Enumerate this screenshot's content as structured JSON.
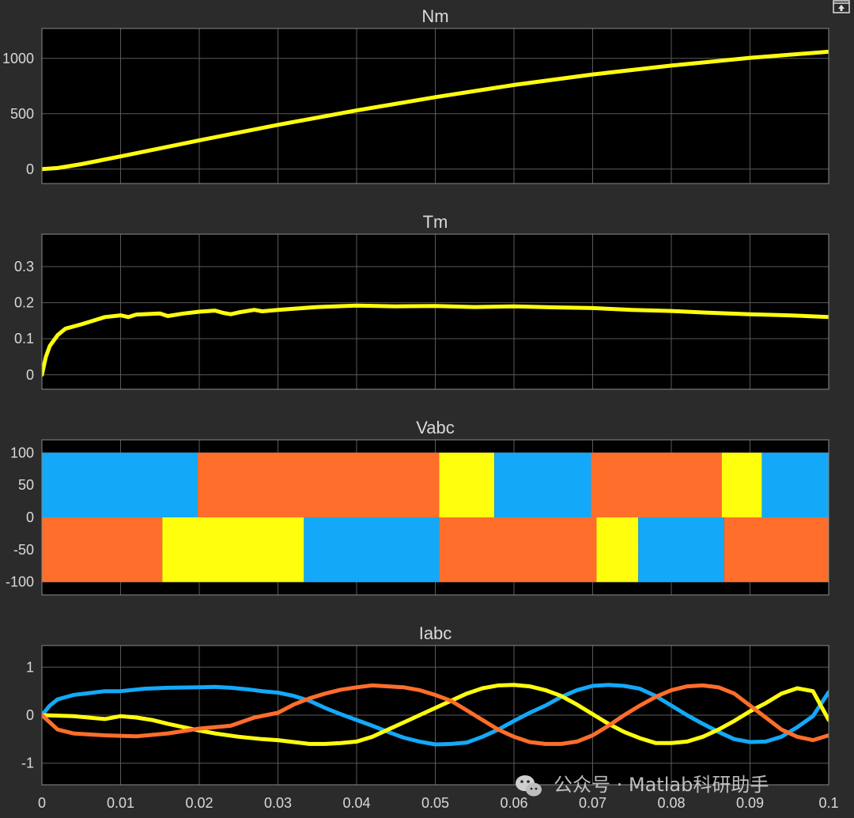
{
  "window": {
    "restore_icon": "restore-axes-icon"
  },
  "watermark": {
    "text": "公众号 · Matlab科研助手",
    "icon": "wechat-icon"
  },
  "colors": {
    "background": "#2b2b2b",
    "axes_bg": "#000000",
    "grid": "#5a5a5a",
    "text": "#d9d9d9",
    "yellow": "#ffff0d",
    "blue": "#13a9f8",
    "orange": "#ff6e2b"
  },
  "chart_data": [
    {
      "type": "line",
      "title": "Nm",
      "xlim": [
        0,
        0.1
      ],
      "ylim": [
        -130,
        1270
      ],
      "yticks": [
        0,
        500,
        1000
      ],
      "xticks": [
        0,
        0.01,
        0.02,
        0.03,
        0.04,
        0.05,
        0.06,
        0.07,
        0.08,
        0.09,
        0.1
      ],
      "show_xtick_labels": false,
      "grid": true,
      "series": [
        {
          "color": "#ffff0d",
          "x": [
            0,
            0.002,
            0.005,
            0.01,
            0.02,
            0.03,
            0.04,
            0.05,
            0.06,
            0.07,
            0.08,
            0.09,
            0.1
          ],
          "y": [
            0,
            10,
            45,
            115,
            260,
            400,
            530,
            650,
            760,
            855,
            935,
            1005,
            1060
          ]
        }
      ]
    },
    {
      "type": "line",
      "title": "Tm",
      "xlim": [
        0,
        0.1
      ],
      "ylim": [
        -0.04,
        0.39
      ],
      "yticks": [
        0,
        0.1,
        0.2,
        0.3
      ],
      "xticks": [
        0,
        0.01,
        0.02,
        0.03,
        0.04,
        0.05,
        0.06,
        0.07,
        0.08,
        0.09,
        0.1
      ],
      "show_xtick_labels": false,
      "grid": true,
      "series": [
        {
          "color": "#ffff0d",
          "x": [
            0,
            0.0005,
            0.001,
            0.002,
            0.003,
            0.005,
            0.008,
            0.01,
            0.011,
            0.012,
            0.015,
            0.016,
            0.018,
            0.02,
            0.022,
            0.023,
            0.024,
            0.025,
            0.027,
            0.028,
            0.03,
            0.035,
            0.04,
            0.045,
            0.05,
            0.055,
            0.06,
            0.065,
            0.07,
            0.075,
            0.08,
            0.085,
            0.09,
            0.095,
            0.1
          ],
          "y": [
            0,
            0.05,
            0.08,
            0.11,
            0.128,
            0.14,
            0.16,
            0.165,
            0.16,
            0.167,
            0.17,
            0.163,
            0.17,
            0.175,
            0.178,
            0.172,
            0.168,
            0.173,
            0.18,
            0.176,
            0.18,
            0.188,
            0.192,
            0.19,
            0.191,
            0.188,
            0.19,
            0.187,
            0.185,
            0.18,
            0.177,
            0.172,
            0.168,
            0.165,
            0.16
          ]
        }
      ]
    },
    {
      "type": "area",
      "title": "Vabc",
      "xlim": [
        0,
        0.1
      ],
      "ylim": [
        -120,
        120
      ],
      "yticks": [
        -100,
        -50,
        0,
        50,
        100
      ],
      "xticks": [
        0,
        0.01,
        0.02,
        0.03,
        0.04,
        0.05,
        0.06,
        0.07,
        0.08,
        0.09,
        0.1
      ],
      "show_xtick_labels": false,
      "grid": true,
      "segments": [
        {
          "color": "#13a9f8",
          "x0": 0,
          "x1": 0.0198,
          "y0": 0,
          "y1": 100
        },
        {
          "color": "#ff6e2b",
          "x0": 0.0198,
          "x1": 0.0505,
          "y0": 0,
          "y1": 100
        },
        {
          "color": "#ffff0d",
          "x0": 0.0505,
          "x1": 0.0575,
          "y0": 0,
          "y1": 100
        },
        {
          "color": "#13a9f8",
          "x0": 0.0575,
          "x1": 0.0698,
          "y0": 0,
          "y1": 100
        },
        {
          "color": "#ff6e2b",
          "x0": 0.0698,
          "x1": 0.0864,
          "y0": 0,
          "y1": 100
        },
        {
          "color": "#ffff0d",
          "x0": 0.0864,
          "x1": 0.0915,
          "y0": 0,
          "y1": 100
        },
        {
          "color": "#13a9f8",
          "x0": 0.0915,
          "x1": 0.1,
          "y0": 0,
          "y1": 100
        },
        {
          "color": "#ff6e2b",
          "x0": 0,
          "x1": 0.0153,
          "y0": -100,
          "y1": 0
        },
        {
          "color": "#ffff0d",
          "x0": 0.0153,
          "x1": 0.0333,
          "y0": -100,
          "y1": 0
        },
        {
          "color": "#13a9f8",
          "x0": 0.0333,
          "x1": 0.0505,
          "y0": -100,
          "y1": 0
        },
        {
          "color": "#ff6e2b",
          "x0": 0.0505,
          "x1": 0.0705,
          "y0": -100,
          "y1": 0
        },
        {
          "color": "#ffff0d",
          "x0": 0.0705,
          "x1": 0.0758,
          "y0": -100,
          "y1": 0
        },
        {
          "color": "#13a9f8",
          "x0": 0.0758,
          "x1": 0.0867,
          "y0": -100,
          "y1": 0
        },
        {
          "color": "#ff6e2b",
          "x0": 0.0867,
          "x1": 0.1,
          "y0": -100,
          "y1": 0
        }
      ]
    },
    {
      "type": "line",
      "title": "Iabc",
      "xlim": [
        0,
        0.1
      ],
      "ylim": [
        -1.45,
        1.45
      ],
      "yticks": [
        -1,
        0,
        1
      ],
      "xticks": [
        0,
        0.01,
        0.02,
        0.03,
        0.04,
        0.05,
        0.06,
        0.07,
        0.08,
        0.09,
        0.1
      ],
      "xtick_labels": [
        "0",
        "0.01",
        "0.02",
        "0.03",
        "0.04",
        "0.05",
        "0.06",
        "0.07",
        "0.08",
        "0.09",
        "0.1"
      ],
      "show_xtick_labels": true,
      "grid": true,
      "series": [
        {
          "color": "#13a9f8",
          "x": [
            0,
            0.001,
            0.002,
            0.004,
            0.006,
            0.008,
            0.01,
            0.013,
            0.016,
            0.02,
            0.022,
            0.024,
            0.026,
            0.028,
            0.03,
            0.032,
            0.034,
            0.036,
            0.038,
            0.04,
            0.042,
            0.044,
            0.046,
            0.048,
            0.05,
            0.052,
            0.054,
            0.056,
            0.058,
            0.06,
            0.062,
            0.064,
            0.066,
            0.068,
            0.07,
            0.072,
            0.074,
            0.076,
            0.078,
            0.08,
            0.082,
            0.084,
            0.086,
            0.088,
            0.09,
            0.092,
            0.094,
            0.096,
            0.098,
            0.1
          ],
          "y": [
            0,
            0.2,
            0.33,
            0.42,
            0.46,
            0.5,
            0.5,
            0.55,
            0.57,
            0.58,
            0.59,
            0.57,
            0.54,
            0.5,
            0.47,
            0.4,
            0.3,
            0.15,
            0.02,
            -0.1,
            -0.22,
            -0.35,
            -0.47,
            -0.55,
            -0.61,
            -0.6,
            -0.57,
            -0.45,
            -0.3,
            -0.12,
            0.05,
            0.2,
            0.38,
            0.52,
            0.61,
            0.63,
            0.61,
            0.55,
            0.4,
            0.2,
            0.0,
            -0.18,
            -0.35,
            -0.5,
            -0.56,
            -0.55,
            -0.45,
            -0.25,
            -0.02,
            0.48
          ]
        },
        {
          "color": "#ffff0d",
          "x": [
            0,
            0.004,
            0.008,
            0.01,
            0.012,
            0.014,
            0.016,
            0.018,
            0.02,
            0.022,
            0.025,
            0.028,
            0.03,
            0.032,
            0.034,
            0.036,
            0.038,
            0.04,
            0.042,
            0.044,
            0.046,
            0.048,
            0.05,
            0.052,
            0.054,
            0.056,
            0.058,
            0.06,
            0.062,
            0.064,
            0.066,
            0.068,
            0.07,
            0.072,
            0.074,
            0.076,
            0.078,
            0.08,
            0.082,
            0.084,
            0.086,
            0.088,
            0.09,
            0.092,
            0.094,
            0.096,
            0.098,
            0.1
          ],
          "y": [
            0,
            -0.02,
            -0.08,
            -0.02,
            -0.05,
            -0.1,
            -0.18,
            -0.25,
            -0.32,
            -0.38,
            -0.45,
            -0.5,
            -0.52,
            -0.56,
            -0.6,
            -0.6,
            -0.58,
            -0.55,
            -0.45,
            -0.3,
            -0.15,
            0.0,
            0.15,
            0.3,
            0.45,
            0.56,
            0.62,
            0.63,
            0.6,
            0.52,
            0.4,
            0.22,
            0.02,
            -0.18,
            -0.35,
            -0.48,
            -0.58,
            -0.58,
            -0.55,
            -0.45,
            -0.3,
            -0.12,
            0.08,
            0.25,
            0.45,
            0.56,
            0.5,
            -0.1
          ]
        },
        {
          "color": "#ff6e2b",
          "x": [
            0,
            0.001,
            0.002,
            0.004,
            0.008,
            0.012,
            0.016,
            0.02,
            0.024,
            0.027,
            0.03,
            0.032,
            0.034,
            0.036,
            0.038,
            0.04,
            0.042,
            0.044,
            0.046,
            0.048,
            0.05,
            0.052,
            0.054,
            0.056,
            0.058,
            0.06,
            0.062,
            0.064,
            0.066,
            0.068,
            0.07,
            0.072,
            0.074,
            0.076,
            0.078,
            0.08,
            0.082,
            0.084,
            0.086,
            0.088,
            0.09,
            0.092,
            0.094,
            0.096,
            0.098,
            0.1
          ],
          "y": [
            0,
            -0.15,
            -0.3,
            -0.38,
            -0.42,
            -0.44,
            -0.38,
            -0.28,
            -0.22,
            -0.05,
            0.05,
            0.22,
            0.35,
            0.45,
            0.53,
            0.58,
            0.62,
            0.6,
            0.58,
            0.52,
            0.42,
            0.3,
            0.1,
            -0.1,
            -0.3,
            -0.45,
            -0.56,
            -0.6,
            -0.6,
            -0.55,
            -0.42,
            -0.22,
            0.0,
            0.2,
            0.38,
            0.52,
            0.6,
            0.62,
            0.58,
            0.45,
            0.2,
            -0.05,
            -0.3,
            -0.45,
            -0.52,
            -0.42
          ]
        }
      ]
    }
  ]
}
